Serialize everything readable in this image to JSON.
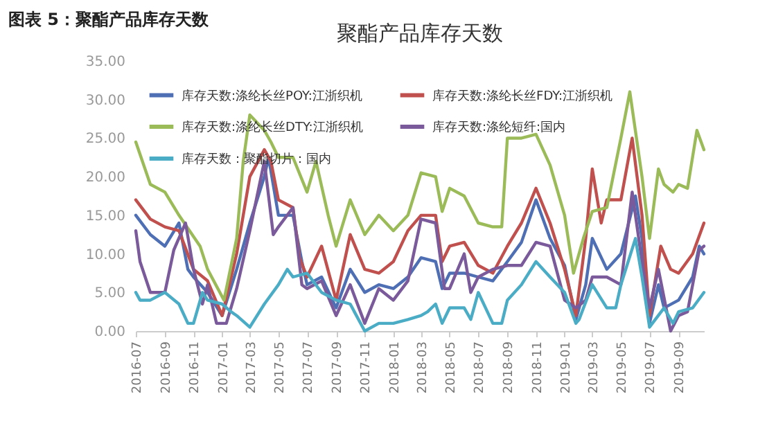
{
  "chart_data": {
    "type": "line",
    "title": "聚酯产品库存天数",
    "annotations": [
      "图表 5：聚酯产品库存天数"
    ],
    "xlim": [
      "2016-07-01",
      "2019-10-25"
    ],
    "xticks": [
      "2016-07",
      "2016-09",
      "2016-11",
      "2017-01",
      "2017-03",
      "2017-05",
      "2017-07",
      "2017-09",
      "2017-11",
      "2018-01",
      "2018-03",
      "2018-05",
      "2018-07",
      "2018-09",
      "2018-11",
      "2019-01",
      "2019-03",
      "2019-05",
      "2019-07",
      "2019-09"
    ],
    "ylim": [
      0,
      35
    ],
    "yticks": [
      {
        "value": 0,
        "label": "0.00"
      },
      {
        "value": 5,
        "label": "5.00"
      },
      {
        "value": 10,
        "label": "10.00"
      },
      {
        "value": 15,
        "label": "15.00"
      },
      {
        "value": 20,
        "label": "20.00"
      },
      {
        "value": 25,
        "label": "25.00"
      },
      {
        "value": 30,
        "label": "30.00"
      },
      {
        "value": 35,
        "label": "35.00"
      }
    ],
    "grid": false,
    "legend": "top",
    "marker": "none",
    "line_style": "solid",
    "series": [
      {
        "name": "库存天数:涤纶长丝POY:江浙织机",
        "color": "#4f6fb5",
        "x": [
          "2016-07-01",
          "2016-08-01",
          "2016-09-01",
          "2016-10-01",
          "2016-10-20",
          "2016-11-01",
          "2016-12-01",
          "2017-01-01",
          "2017-02-01",
          "2017-03-01",
          "2017-04-01",
          "2017-04-10",
          "2017-05-01",
          "2017-06-01",
          "2017-06-20",
          "2017-07-01",
          "2017-08-01",
          "2017-09-01",
          "2017-10-01",
          "2017-11-01",
          "2017-12-01",
          "2018-01-01",
          "2018-02-01",
          "2018-03-01",
          "2018-04-01",
          "2018-04-15",
          "2018-05-01",
          "2018-06-01",
          "2018-07-01",
          "2018-08-01",
          "2018-09-01",
          "2018-10-01",
          "2018-11-01",
          "2018-12-01",
          "2019-01-01",
          "2019-01-25",
          "2019-02-15",
          "2019-03-01",
          "2019-04-01",
          "2019-05-01",
          "2019-06-01",
          "2019-06-15",
          "2019-07-01",
          "2019-07-20",
          "2019-08-01",
          "2019-09-01",
          "2019-10-01",
          "2019-10-15",
          "2019-10-25"
        ],
        "values": [
          15,
          12.5,
          11,
          14,
          8,
          7,
          5,
          2,
          8,
          14,
          20,
          22.5,
          15,
          15,
          9,
          6,
          7,
          3,
          8,
          5,
          6,
          5.5,
          7,
          9.5,
          9,
          5.5,
          7.5,
          7.5,
          7,
          6.5,
          9,
          11.5,
          17,
          12,
          8.5,
          1.5,
          6,
          12,
          8,
          10,
          17.5,
          12,
          1,
          6,
          3,
          4,
          7,
          11,
          10
        ]
      },
      {
        "name": "库存天数:涤纶长丝FDY:江浙织机",
        "color": "#c0504d",
        "x": [
          "2016-07-01",
          "2016-08-01",
          "2016-09-01",
          "2016-10-01",
          "2016-11-01",
          "2016-12-01",
          "2017-01-01",
          "2017-02-01",
          "2017-03-01",
          "2017-04-01",
          "2017-04-15",
          "2017-05-01",
          "2017-06-01",
          "2017-06-15",
          "2017-07-01",
          "2017-08-01",
          "2017-09-01",
          "2017-10-01",
          "2017-11-01",
          "2017-12-01",
          "2018-01-01",
          "2018-02-01",
          "2018-03-01",
          "2018-04-01",
          "2018-04-15",
          "2018-05-01",
          "2018-06-01",
          "2018-07-01",
          "2018-08-01",
          "2018-09-01",
          "2018-10-01",
          "2018-11-01",
          "2018-12-01",
          "2019-01-01",
          "2019-01-25",
          "2019-02-15",
          "2019-03-01",
          "2019-03-20",
          "2019-04-01",
          "2019-05-01",
          "2019-05-25",
          "2019-06-15",
          "2019-07-01",
          "2019-07-25",
          "2019-08-15",
          "2019-09-01",
          "2019-10-01",
          "2019-10-25"
        ],
        "values": [
          17,
          14.5,
          13.5,
          13,
          8,
          6.5,
          2,
          10,
          20,
          23.5,
          22,
          17,
          16,
          9.5,
          7,
          11,
          4,
          12.5,
          8,
          7.5,
          9,
          13,
          15,
          15,
          9,
          11,
          11.5,
          8.5,
          7.5,
          11,
          14,
          18.5,
          14,
          8,
          2,
          12,
          21,
          14,
          17,
          17,
          25,
          15,
          2,
          11,
          8,
          7.5,
          10,
          14
        ]
      },
      {
        "name": "库存天数:涤纶长丝DTY:江浙织机",
        "color": "#9bbb59",
        "x": [
          "2016-07-01",
          "2016-08-01",
          "2016-09-01",
          "2016-10-01",
          "2016-11-15",
          "2016-12-01",
          "2017-01-05",
          "2017-02-01",
          "2017-02-15",
          "2017-03-01",
          "2017-04-01",
          "2017-04-15",
          "2017-05-01",
          "2017-06-01",
          "2017-07-01",
          "2017-07-20",
          "2017-08-15",
          "2017-09-01",
          "2017-10-01",
          "2017-11-01",
          "2017-12-01",
          "2018-01-01",
          "2018-02-01",
          "2018-03-01",
          "2018-04-01",
          "2018-04-15",
          "2018-05-01",
          "2018-06-01",
          "2018-07-01",
          "2018-08-01",
          "2018-08-20",
          "2018-09-01",
          "2018-10-01",
          "2018-11-01",
          "2018-12-01",
          "2019-01-01",
          "2019-01-20",
          "2019-02-10",
          "2019-03-01",
          "2019-04-01",
          "2019-05-01",
          "2019-05-20",
          "2019-06-15",
          "2019-07-01",
          "2019-07-20",
          "2019-08-01",
          "2019-08-20",
          "2019-09-01",
          "2019-09-20",
          "2019-10-10",
          "2019-10-25"
        ],
        "values": [
          24.5,
          19,
          18,
          15,
          11,
          8,
          4,
          12,
          22,
          28,
          26,
          24.5,
          22.5,
          22.5,
          18,
          22,
          15,
          11,
          17,
          12.5,
          15,
          13,
          15,
          20.5,
          20,
          15.5,
          18.5,
          17.5,
          14,
          13.5,
          13.5,
          25,
          25,
          25.5,
          21.5,
          15,
          7.5,
          12,
          15.5,
          16,
          25,
          31,
          20,
          12,
          21,
          19,
          18,
          19,
          18.5,
          26,
          23.5
        ]
      },
      {
        "name": "库存天数:涤纶短纤:国内",
        "color": "#7a5a9a",
        "x": [
          "2016-07-01",
          "2016-07-10",
          "2016-08-01",
          "2016-09-01",
          "2016-09-20",
          "2016-10-15",
          "2016-11-01",
          "2016-11-20",
          "2016-12-01",
          "2016-12-20",
          "2017-01-10",
          "2017-02-01",
          "2017-03-01",
          "2017-04-01",
          "2017-04-20",
          "2017-05-01",
          "2017-06-01",
          "2017-06-20",
          "2017-07-01",
          "2017-08-01",
          "2017-09-01",
          "2017-10-01",
          "2017-11-01",
          "2017-12-01",
          "2018-01-01",
          "2018-02-01",
          "2018-03-01",
          "2018-04-01",
          "2018-04-20",
          "2018-05-01",
          "2018-06-01",
          "2018-06-15",
          "2018-07-01",
          "2018-08-01",
          "2018-09-01",
          "2018-10-01",
          "2018-11-01",
          "2018-12-01",
          "2019-01-01",
          "2019-01-25",
          "2019-02-15",
          "2019-03-01",
          "2019-04-01",
          "2019-05-01",
          "2019-05-25",
          "2019-06-15",
          "2019-07-01",
          "2019-07-20",
          "2019-08-15",
          "2019-09-01",
          "2019-09-20",
          "2019-10-15",
          "2019-10-25"
        ],
        "values": [
          13,
          9,
          5,
          5,
          10.5,
          14,
          8,
          3.5,
          6,
          1,
          1,
          5.5,
          13,
          22,
          12.5,
          13.5,
          16,
          6,
          5.5,
          6.5,
          2,
          6,
          1,
          5.5,
          4,
          6.5,
          14.5,
          14,
          5.5,
          5.5,
          10,
          5,
          7,
          8,
          8.5,
          8.5,
          11.5,
          11,
          4,
          3,
          4,
          7,
          7,
          6,
          18,
          9,
          3,
          8,
          0,
          2,
          2.5,
          10.5,
          11
        ]
      },
      {
        "name": "库存天数：聚酯切片：国内",
        "color": "#4bacc6",
        "x": [
          "2016-07-01",
          "2016-07-10",
          "2016-08-01",
          "2016-09-01",
          "2016-10-01",
          "2016-10-20",
          "2016-11-01",
          "2016-11-20",
          "2016-12-01",
          "2017-01-01",
          "2017-01-20",
          "2017-02-01",
          "2017-03-01",
          "2017-04-01",
          "2017-05-01",
          "2017-05-20",
          "2017-06-01",
          "2017-07-01",
          "2017-08-01",
          "2017-09-01",
          "2017-10-01",
          "2017-11-01",
          "2017-12-01",
          "2018-01-01",
          "2018-02-01",
          "2018-03-01",
          "2018-03-15",
          "2018-04-01",
          "2018-04-15",
          "2018-05-01",
          "2018-06-01",
          "2018-06-15",
          "2018-07-01",
          "2018-08-01",
          "2018-08-20",
          "2018-09-01",
          "2018-10-01",
          "2018-11-01",
          "2018-12-01",
          "2019-01-01",
          "2019-01-25",
          "2019-02-01",
          "2019-03-01",
          "2019-04-01",
          "2019-04-20",
          "2019-05-01",
          "2019-06-01",
          "2019-06-15",
          "2019-07-01",
          "2019-08-01",
          "2019-08-20",
          "2019-09-01",
          "2019-10-01",
          "2019-10-25"
        ],
        "values": [
          5,
          4,
          4,
          5,
          3.5,
          1,
          1,
          5,
          4,
          3.5,
          2.5,
          2,
          0.5,
          3.5,
          6,
          8,
          7,
          7.5,
          5,
          4,
          3.5,
          0,
          1,
          1,
          1.5,
          2,
          2.5,
          3.5,
          1,
          3,
          3,
          1.5,
          5,
          1,
          1,
          4,
          6,
          9,
          7,
          5,
          1,
          1.5,
          6,
          3,
          3,
          6,
          12,
          7,
          0.5,
          3,
          1,
          2.5,
          3,
          5
        ]
      }
    ]
  }
}
